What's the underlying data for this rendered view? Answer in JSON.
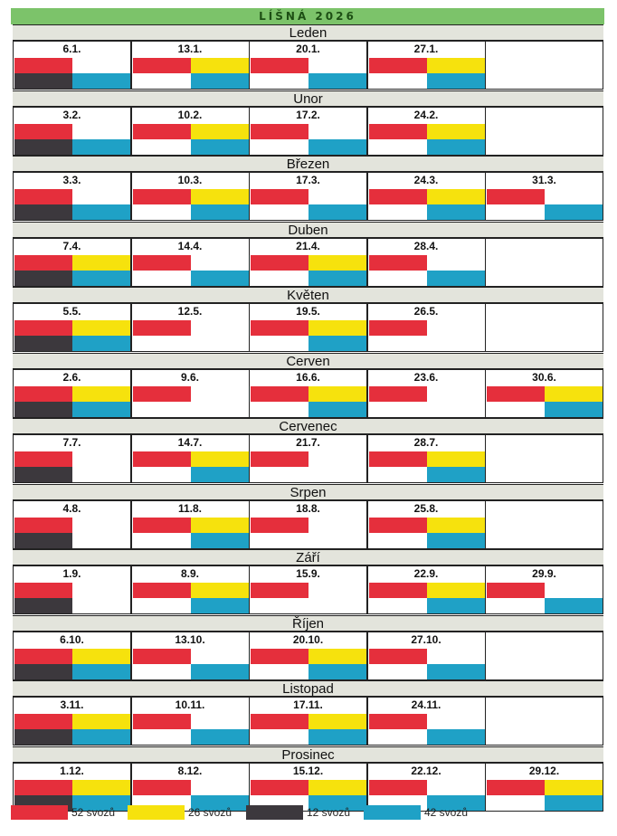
{
  "title": "LÍŠNÁ 2026",
  "colors": {
    "red": "#e52f3c",
    "yellow": "#f6e20d",
    "dark": "#3c383d",
    "blue": "#1fa1c6"
  },
  "months": [
    {
      "name": "Leden",
      "days": [
        {
          "date": "6.1.",
          "tl": "red",
          "tr": "",
          "bl": "dark",
          "br": "blue"
        },
        {
          "date": "13.1.",
          "tl": "red",
          "tr": "yellow",
          "bl": "",
          "br": "blue"
        },
        {
          "date": "20.1.",
          "tl": "red",
          "tr": "",
          "bl": "",
          "br": "blue"
        },
        {
          "date": "27.1.",
          "tl": "red",
          "tr": "yellow",
          "bl": "",
          "br": "blue"
        },
        {
          "date": "",
          "tl": "",
          "tr": "",
          "bl": "",
          "br": ""
        }
      ]
    },
    {
      "name": "Unor",
      "days": [
        {
          "date": "3.2.",
          "tl": "red",
          "tr": "",
          "bl": "dark",
          "br": "blue"
        },
        {
          "date": "10.2.",
          "tl": "red",
          "tr": "yellow",
          "bl": "",
          "br": "blue"
        },
        {
          "date": "17.2.",
          "tl": "red",
          "tr": "",
          "bl": "",
          "br": "blue"
        },
        {
          "date": "24.2.",
          "tl": "red",
          "tr": "yellow",
          "bl": "",
          "br": "blue"
        },
        {
          "date": "",
          "tl": "",
          "tr": "",
          "bl": "",
          "br": ""
        }
      ]
    },
    {
      "name": "Březen",
      "days": [
        {
          "date": "3.3.",
          "tl": "red",
          "tr": "",
          "bl": "dark",
          "br": "blue"
        },
        {
          "date": "10.3.",
          "tl": "red",
          "tr": "yellow",
          "bl": "",
          "br": "blue"
        },
        {
          "date": "17.3.",
          "tl": "red",
          "tr": "",
          "bl": "",
          "br": "blue"
        },
        {
          "date": "24.3.",
          "tl": "red",
          "tr": "yellow",
          "bl": "",
          "br": "blue"
        },
        {
          "date": "31.3.",
          "tl": "red",
          "tr": "",
          "bl": "",
          "br": "blue"
        }
      ]
    },
    {
      "name": "Duben",
      "days": [
        {
          "date": "7.4.",
          "tl": "red",
          "tr": "yellow",
          "bl": "dark",
          "br": "blue"
        },
        {
          "date": "14.4.",
          "tl": "red",
          "tr": "",
          "bl": "",
          "br": "blue"
        },
        {
          "date": "21.4.",
          "tl": "red",
          "tr": "yellow",
          "bl": "",
          "br": "blue"
        },
        {
          "date": "28.4.",
          "tl": "red",
          "tr": "",
          "bl": "",
          "br": "blue"
        },
        {
          "date": "",
          "tl": "",
          "tr": "",
          "bl": "",
          "br": ""
        }
      ]
    },
    {
      "name": "Květen",
      "days": [
        {
          "date": "5.5.",
          "tl": "red",
          "tr": "yellow",
          "bl": "dark",
          "br": "blue"
        },
        {
          "date": "12.5.",
          "tl": "red",
          "tr": "",
          "bl": "",
          "br": ""
        },
        {
          "date": "19.5.",
          "tl": "red",
          "tr": "yellow",
          "bl": "",
          "br": "blue"
        },
        {
          "date": "26.5.",
          "tl": "red",
          "tr": "",
          "bl": "",
          "br": ""
        },
        {
          "date": "",
          "tl": "",
          "tr": "",
          "bl": "",
          "br": ""
        }
      ]
    },
    {
      "name": "Cerven",
      "days": [
        {
          "date": "2.6.",
          "tl": "red",
          "tr": "yellow",
          "bl": "dark",
          "br": "blue"
        },
        {
          "date": "9.6.",
          "tl": "red",
          "tr": "",
          "bl": "",
          "br": ""
        },
        {
          "date": "16.6.",
          "tl": "red",
          "tr": "yellow",
          "bl": "",
          "br": "blue"
        },
        {
          "date": "23.6.",
          "tl": "red",
          "tr": "",
          "bl": "",
          "br": ""
        },
        {
          "date": "30.6.",
          "tl": "red",
          "tr": "yellow",
          "bl": "",
          "br": "blue"
        }
      ]
    },
    {
      "name": "Cervenec",
      "days": [
        {
          "date": "7.7.",
          "tl": "red",
          "tr": "",
          "bl": "dark",
          "br": ""
        },
        {
          "date": "14.7.",
          "tl": "red",
          "tr": "yellow",
          "bl": "",
          "br": "blue"
        },
        {
          "date": "21.7.",
          "tl": "red",
          "tr": "",
          "bl": "",
          "br": ""
        },
        {
          "date": "28.7.",
          "tl": "red",
          "tr": "yellow",
          "bl": "",
          "br": "blue"
        },
        {
          "date": "",
          "tl": "",
          "tr": "",
          "bl": "",
          "br": ""
        }
      ]
    },
    {
      "name": "Srpen",
      "days": [
        {
          "date": "4.8.",
          "tl": "red",
          "tr": "",
          "bl": "dark",
          "br": ""
        },
        {
          "date": "11.8.",
          "tl": "red",
          "tr": "yellow",
          "bl": "",
          "br": "blue"
        },
        {
          "date": "18.8.",
          "tl": "red",
          "tr": "",
          "bl": "",
          "br": ""
        },
        {
          "date": "25.8.",
          "tl": "red",
          "tr": "yellow",
          "bl": "",
          "br": "blue"
        },
        {
          "date": "",
          "tl": "",
          "tr": "",
          "bl": "",
          "br": ""
        }
      ]
    },
    {
      "name": "Září",
      "days": [
        {
          "date": "1.9.",
          "tl": "red",
          "tr": "",
          "bl": "dark",
          "br": ""
        },
        {
          "date": "8.9.",
          "tl": "red",
          "tr": "yellow",
          "bl": "",
          "br": "blue"
        },
        {
          "date": "15.9.",
          "tl": "red",
          "tr": "",
          "bl": "",
          "br": ""
        },
        {
          "date": "22.9.",
          "tl": "red",
          "tr": "yellow",
          "bl": "",
          "br": "blue"
        },
        {
          "date": "29.9.",
          "tl": "red",
          "tr": "",
          "bl": "",
          "br": "blue"
        }
      ]
    },
    {
      "name": "Říjen",
      "days": [
        {
          "date": "6.10.",
          "tl": "red",
          "tr": "yellow",
          "bl": "dark",
          "br": "blue"
        },
        {
          "date": "13.10.",
          "tl": "red",
          "tr": "",
          "bl": "",
          "br": "blue"
        },
        {
          "date": "20.10.",
          "tl": "red",
          "tr": "yellow",
          "bl": "",
          "br": "blue"
        },
        {
          "date": "27.10.",
          "tl": "red",
          "tr": "",
          "bl": "",
          "br": "blue"
        },
        {
          "date": "",
          "tl": "",
          "tr": "",
          "bl": "",
          "br": ""
        }
      ]
    },
    {
      "name": "Listopad",
      "days": [
        {
          "date": "3.11.",
          "tl": "red",
          "tr": "yellow",
          "bl": "dark",
          "br": "blue"
        },
        {
          "date": "10.11.",
          "tl": "red",
          "tr": "",
          "bl": "",
          "br": "blue"
        },
        {
          "date": "17.11.",
          "tl": "red",
          "tr": "yellow",
          "bl": "",
          "br": "blue"
        },
        {
          "date": "24.11.",
          "tl": "red",
          "tr": "",
          "bl": "",
          "br": "blue"
        },
        {
          "date": "",
          "tl": "",
          "tr": "",
          "bl": "",
          "br": ""
        }
      ]
    },
    {
      "name": "Prosinec",
      "days": [
        {
          "date": "1.12.",
          "tl": "red",
          "tr": "yellow",
          "bl": "dark",
          "br": "blue"
        },
        {
          "date": "8.12.",
          "tl": "red",
          "tr": "",
          "bl": "",
          "br": "blue"
        },
        {
          "date": "15.12.",
          "tl": "red",
          "tr": "yellow",
          "bl": "",
          "br": "blue"
        },
        {
          "date": "22.12.",
          "tl": "red",
          "tr": "",
          "bl": "",
          "br": "blue"
        },
        {
          "date": "29.12.",
          "tl": "red",
          "tr": "yellow",
          "bl": "",
          "br": "blue"
        }
      ]
    }
  ],
  "legend": [
    {
      "color": "red",
      "label": "52 svozů"
    },
    {
      "color": "yellow",
      "label": "26 svozů"
    },
    {
      "color": "dark",
      "label": "12 svozů"
    },
    {
      "color": "blue",
      "label": "42 svozů"
    }
  ]
}
